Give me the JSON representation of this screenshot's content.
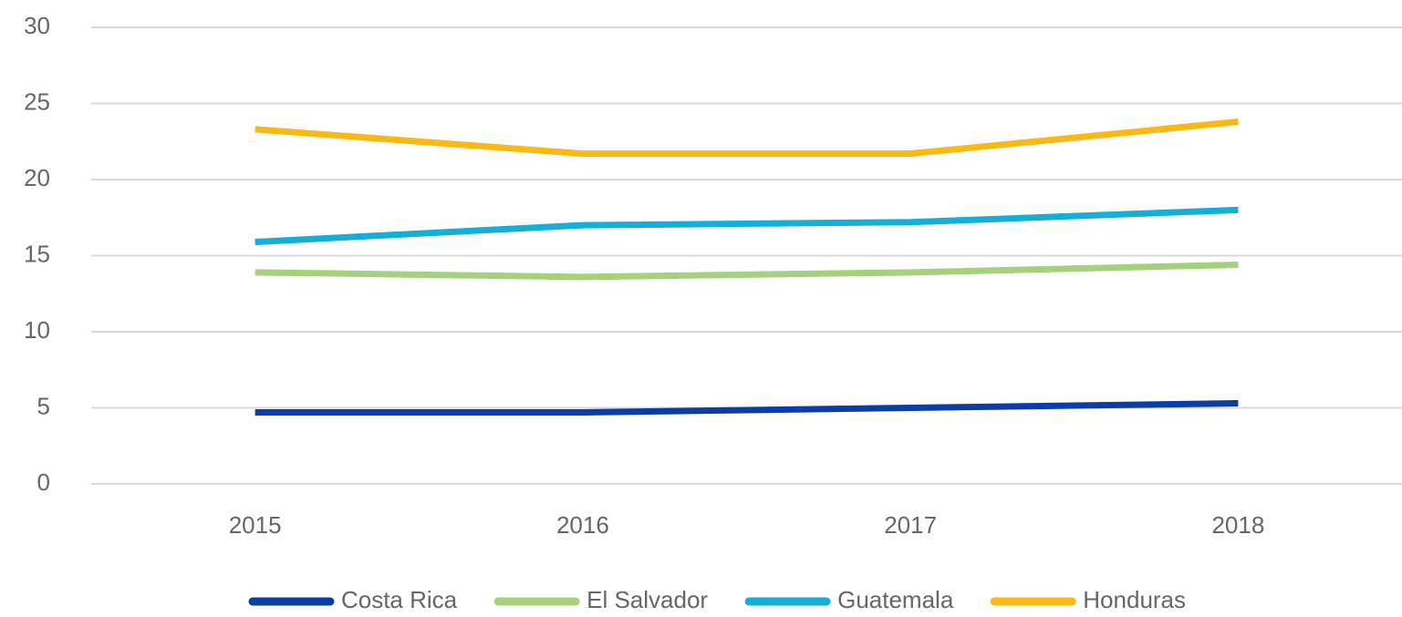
{
  "chart_data": {
    "type": "line",
    "x": [
      "2015",
      "2016",
      "2017",
      "2018"
    ],
    "series": [
      {
        "name": "Costa Rica",
        "color": "#0b3da6",
        "values": [
          4.7,
          4.7,
          5.0,
          5.3
        ]
      },
      {
        "name": "El Salvador",
        "color": "#a6d07b",
        "values": [
          13.9,
          13.6,
          13.9,
          14.4
        ]
      },
      {
        "name": "Guatemala",
        "color": "#14aed9",
        "values": [
          15.9,
          17.0,
          17.2,
          18.0
        ]
      },
      {
        "name": "Honduras",
        "color": "#fbb714",
        "values": [
          23.3,
          21.7,
          21.7,
          23.8
        ]
      }
    ],
    "ylim": [
      0,
      30
    ],
    "yticks": [
      0,
      5,
      10,
      15,
      20,
      25,
      30
    ],
    "grid": true,
    "legend": "bottom"
  }
}
